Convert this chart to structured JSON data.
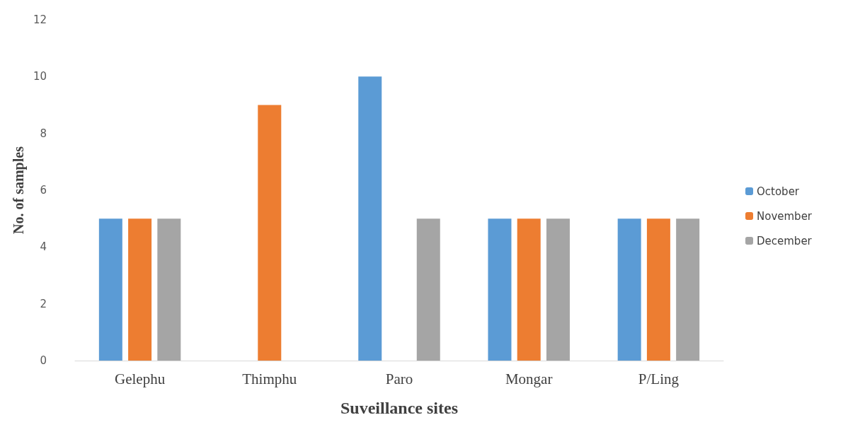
{
  "chart_data": {
    "type": "bar",
    "xlabel": "Suveillance sites",
    "ylabel": "No. of samples",
    "categories": [
      "Gelephu",
      "Thimphu",
      "Paro",
      "Mongar",
      "P/Ling"
    ],
    "series": [
      {
        "name": "October",
        "color": "#5b9bd5",
        "values": [
          5,
          0,
          10,
          5,
          5
        ]
      },
      {
        "name": "November",
        "color": "#ed7d31",
        "values": [
          5,
          9,
          0,
          5,
          5
        ]
      },
      {
        "name": "December",
        "color": "#a5a5a5",
        "values": [
          5,
          0,
          5,
          5,
          5
        ]
      }
    ],
    "ylim": [
      0,
      12
    ],
    "yticks": [
      0,
      2,
      4,
      6,
      8,
      10,
      12
    ],
    "grid": false,
    "legend": "right"
  }
}
